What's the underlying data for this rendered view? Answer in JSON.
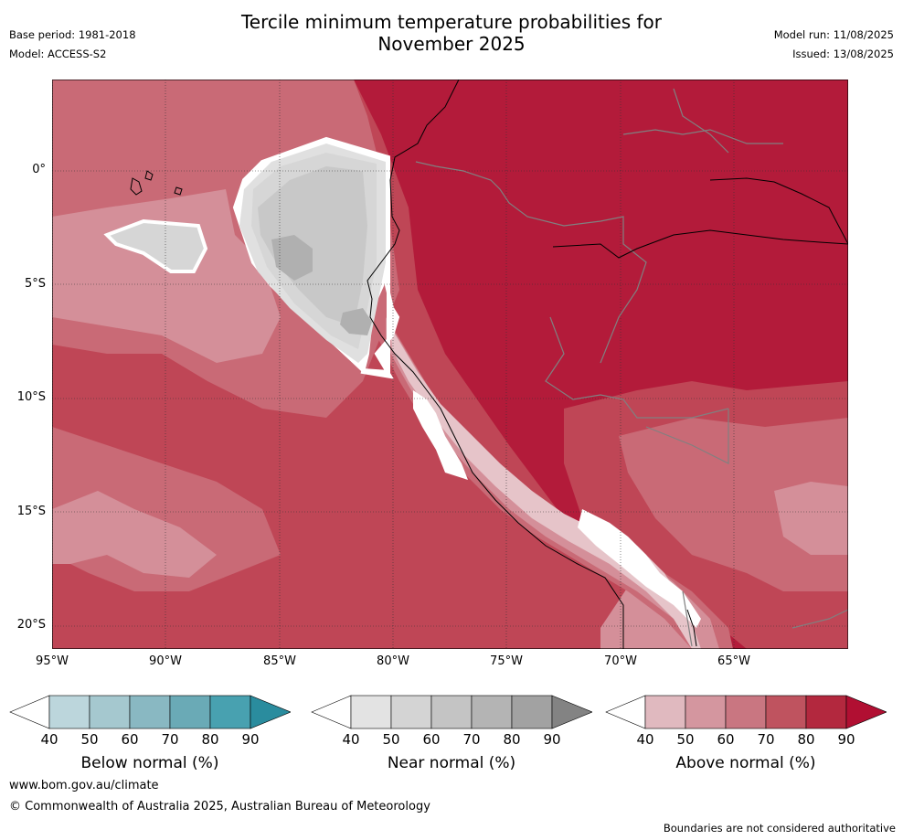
{
  "header": {
    "title_line1": "Tercile minimum temperature probabilities for",
    "title_line2": "November 2025",
    "base_period": "Base period: 1981-2018",
    "model": "Model: ACCESS-S2",
    "model_run": "Model run: 11/08/2025",
    "issued": "Issued: 13/08/2025"
  },
  "map": {
    "lat_labels": [
      "0°",
      "5°S",
      "10°S",
      "15°S",
      "20°S"
    ],
    "lon_labels": [
      "95°W",
      "90°W",
      "85°W",
      "80°W",
      "75°W",
      "70°W",
      "65°W"
    ],
    "background_color": "#b31b3a",
    "dominant_category": "Above normal",
    "near_normal_region": "off the coast of Ecuador and northern Peru"
  },
  "colorbars": [
    {
      "caption": "Below normal (%)",
      "ticks": [
        "40",
        "50",
        "60",
        "70",
        "80",
        "90"
      ],
      "colors": [
        "#ffffff",
        "#bcd6dc",
        "#a5c8cf",
        "#89b8c2",
        "#6aaab6",
        "#48a1b0",
        "#2a8c9e"
      ]
    },
    {
      "caption": "Near normal (%)",
      "ticks": [
        "40",
        "50",
        "60",
        "70",
        "80",
        "90"
      ],
      "colors": [
        "#ffffff",
        "#e3e3e3",
        "#d4d4d4",
        "#c4c4c4",
        "#b4b4b4",
        "#a2a2a2",
        "#838383"
      ]
    },
    {
      "caption": "Above normal (%)",
      "ticks": [
        "40",
        "50",
        "60",
        "70",
        "80",
        "90"
      ],
      "colors": [
        "#ffffff",
        "#e0b9bf",
        "#d4969f",
        "#c97681",
        "#bf535f",
        "#b3283e",
        "#b10f32"
      ]
    }
  ],
  "footer": {
    "website": "www.bom.gov.au/climate",
    "copyright": "© Commonwealth of Australia 2025, Australian Bureau of Meteorology",
    "disclaimer": "Boundaries are not considered authoritative"
  }
}
